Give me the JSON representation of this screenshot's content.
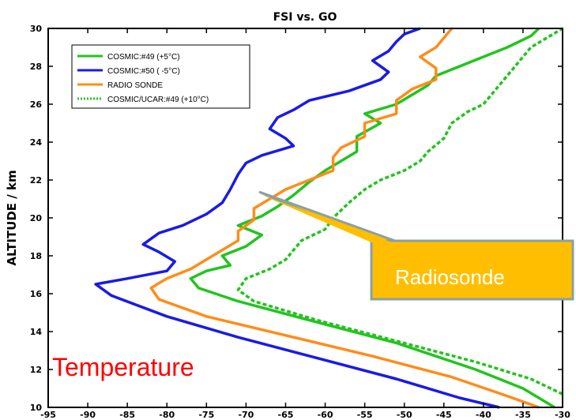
{
  "chart_data": {
    "type": "line",
    "title": "FSI  vs. GO",
    "xlabel": "",
    "ylabel": "ALTITUDE / km",
    "xlim": [
      -95,
      -30
    ],
    "ylim": [
      10,
      30
    ],
    "xticks": [
      -95,
      -90,
      -85,
      -80,
      -75,
      -70,
      -65,
      -60,
      -55,
      -50,
      -45,
      -40,
      -35,
      -30
    ],
    "yticks": [
      10,
      12,
      14,
      16,
      18,
      20,
      22,
      24,
      26,
      28,
      30
    ],
    "legend_position": "top-left",
    "grid": false,
    "series": [
      {
        "name": "COSMIC:#49 (+5°C)",
        "color": "#22c41e",
        "style": "solid",
        "points": [
          [
            -31,
            10
          ],
          [
            -35,
            11
          ],
          [
            -41,
            12
          ],
          [
            -51,
            13.4
          ],
          [
            -62,
            14.6
          ],
          [
            -71,
            15.6
          ],
          [
            -76,
            16.3
          ],
          [
            -77,
            16.8
          ],
          [
            -75,
            17.2
          ],
          [
            -72,
            17.5
          ],
          [
            -73,
            18
          ],
          [
            -70,
            18.5
          ],
          [
            -68,
            19.1
          ],
          [
            -71,
            19.6
          ],
          [
            -68,
            20.1
          ],
          [
            -66,
            20.6
          ],
          [
            -64,
            21.2
          ],
          [
            -62,
            21.9
          ],
          [
            -60,
            22.5
          ],
          [
            -58,
            23
          ],
          [
            -56,
            23.5
          ],
          [
            -56,
            24.3
          ],
          [
            -53,
            25
          ],
          [
            -55,
            25.5
          ],
          [
            -51,
            26
          ],
          [
            -49,
            26.5
          ],
          [
            -47,
            27
          ],
          [
            -46,
            27.5
          ],
          [
            -43,
            28
          ],
          [
            -40,
            28.5
          ],
          [
            -37,
            29
          ],
          [
            -34,
            29.6
          ],
          [
            -33,
            30
          ]
        ]
      },
      {
        "name": "COSMIC:#50 ( -5°C)",
        "color": "#1a1ae6",
        "style": "solid",
        "points": [
          [
            -38,
            10
          ],
          [
            -43,
            10.5
          ],
          [
            -51,
            11.5
          ],
          [
            -61,
            12.6
          ],
          [
            -71,
            13.7
          ],
          [
            -80,
            14.8
          ],
          [
            -87,
            15.9
          ],
          [
            -89,
            16.5
          ],
          [
            -85,
            16.8
          ],
          [
            -80,
            17.2
          ],
          [
            -79,
            17.7
          ],
          [
            -81,
            18.2
          ],
          [
            -83,
            18.6
          ],
          [
            -81,
            19.2
          ],
          [
            -78,
            19.6
          ],
          [
            -75,
            20.2
          ],
          [
            -73,
            20.8
          ],
          [
            -72,
            21.5
          ],
          [
            -71,
            22.3
          ],
          [
            -70,
            22.9
          ],
          [
            -68,
            23.3
          ],
          [
            -64,
            23.8
          ],
          [
            -65,
            24.2
          ],
          [
            -67,
            24.7
          ],
          [
            -66,
            25.3
          ],
          [
            -64,
            25.7
          ],
          [
            -62,
            26.2
          ],
          [
            -57,
            26.7
          ],
          [
            -53,
            27.3
          ],
          [
            -52,
            27.7
          ],
          [
            -54,
            28.3
          ],
          [
            -52,
            28.8
          ],
          [
            -51,
            29.3
          ],
          [
            -50,
            29.7
          ],
          [
            -48,
            30
          ]
        ]
      },
      {
        "name": "RADIO SONDE",
        "color": "#ff8c1a",
        "style": "solid",
        "points": [
          [
            -33,
            10
          ],
          [
            -37,
            10.6
          ],
          [
            -44,
            11.6
          ],
          [
            -54,
            12.7
          ],
          [
            -65,
            13.8
          ],
          [
            -75,
            14.8
          ],
          [
            -81,
            15.7
          ],
          [
            -82,
            16.3
          ],
          [
            -80,
            16.8
          ],
          [
            -77,
            17.3
          ],
          [
            -75,
            17.8
          ],
          [
            -73,
            18.3
          ],
          [
            -71,
            18.8
          ],
          [
            -71,
            19.3
          ],
          [
            -69,
            19.9
          ],
          [
            -69,
            20.5
          ],
          [
            -67,
            21
          ],
          [
            -65,
            21.5
          ],
          [
            -62,
            22
          ],
          [
            -59,
            22.5
          ],
          [
            -59,
            23.2
          ],
          [
            -58,
            23.7
          ],
          [
            -55,
            24.3
          ],
          [
            -55,
            25
          ],
          [
            -51,
            25.5
          ],
          [
            -51,
            26.2
          ],
          [
            -49,
            26.8
          ],
          [
            -46,
            27.3
          ],
          [
            -46,
            27.9
          ],
          [
            -48,
            28.5
          ],
          [
            -46,
            29
          ],
          [
            -45,
            29.5
          ],
          [
            -44,
            30
          ]
        ]
      },
      {
        "name": "COSMIC/UCAR:#49 (+10°C)",
        "color": "#22c41e",
        "style": "dotted",
        "points": [
          [
            -30,
            10.7
          ],
          [
            -34,
            11.5
          ],
          [
            -41,
            12.4
          ],
          [
            -51,
            13.5
          ],
          [
            -61,
            14.6
          ],
          [
            -69,
            15.6
          ],
          [
            -71,
            16.2
          ],
          [
            -70,
            16.8
          ],
          [
            -67,
            17.3
          ],
          [
            -65,
            17.8
          ],
          [
            -64,
            18.3
          ],
          [
            -63,
            18.8
          ],
          [
            -60,
            19.4
          ],
          [
            -59,
            20
          ],
          [
            -57,
            20.8
          ],
          [
            -55,
            21.5
          ],
          [
            -53,
            22
          ],
          [
            -50,
            22.5
          ],
          [
            -48,
            23
          ],
          [
            -47,
            23.5
          ],
          [
            -45,
            24.2
          ],
          [
            -44,
            25
          ],
          [
            -42,
            25.6
          ],
          [
            -40,
            26
          ],
          [
            -39,
            26.5
          ],
          [
            -38,
            27
          ],
          [
            -37,
            27.5
          ],
          [
            -36,
            28
          ],
          [
            -35,
            28.5
          ],
          [
            -34,
            29
          ],
          [
            -32,
            29.5
          ],
          [
            -30,
            30
          ]
        ]
      }
    ],
    "annotations": {
      "callout_label": "Radiosonde",
      "corner_label": "Temperature"
    }
  }
}
